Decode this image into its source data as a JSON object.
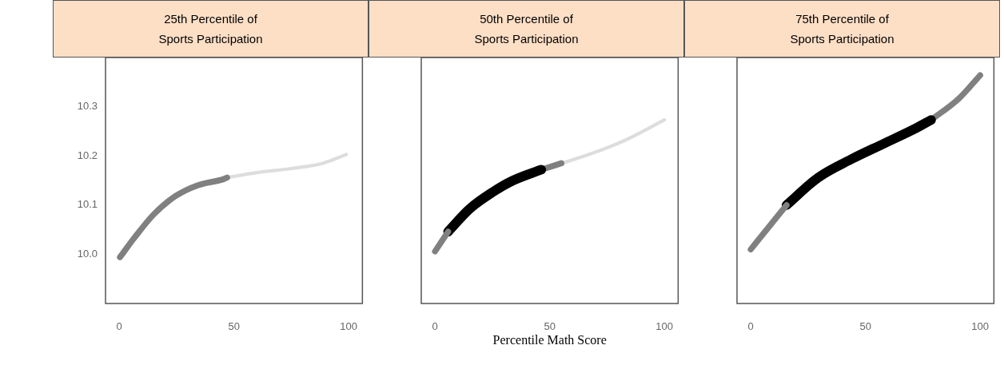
{
  "chart_data": [
    {
      "type": "line",
      "title": "25th Percentile of Sports Participation",
      "xlim": [
        -6,
        106
      ],
      "xticks": [
        0,
        50,
        100
      ],
      "ylim": [
        9.9,
        10.4
      ],
      "yticks": [
        {
          "value": 10,
          "label": "10.0"
        },
        10.1,
        10.2,
        10.3
      ],
      "series": [
        {
          "color": "#808080",
          "x": [
            0.3,
            6.5,
            15,
            24.4,
            34,
            45.6,
            47
          ],
          "values": [
            9.994,
            10.033,
            10.081,
            10.118,
            10.14,
            10.153,
            10.156
          ]
        },
        {
          "color": "#dddddd",
          "x": [
            47,
            60,
            74.5,
            88.7,
            99
          ],
          "values": [
            10.156,
            10.166,
            10.174,
            10.185,
            10.203
          ]
        }
      ]
    },
    {
      "type": "line",
      "title": "50th Percentile of Sports Participation",
      "xlabel": "Percentile Math Score",
      "xlim": [
        -6,
        106
      ],
      "xticks": [
        0,
        50,
        100
      ],
      "ylim": [
        9.9,
        10.4
      ],
      "tick_labels": "x",
      "series": [
        {
          "color": "#808080",
          "x": [
            0,
            5.7
          ],
          "values": [
            10.006,
            10.046
          ]
        },
        {
          "color": "#000000",
          "x": [
            5.7,
            15,
            25,
            34,
            46.3
          ],
          "values": [
            10.046,
            10.092,
            10.126,
            10.15,
            10.172
          ]
        },
        {
          "color": "#808080",
          "x": [
            46.3,
            55.1
          ],
          "values": [
            10.172,
            10.185
          ]
        },
        {
          "color": "#dddddd",
          "x": [
            55.1,
            67.7,
            82,
            100
          ],
          "values": [
            10.185,
            10.204,
            10.23,
            10.273
          ]
        }
      ]
    },
    {
      "type": "line",
      "title": "75th Percentile of Sports Participation",
      "xlim": [
        -6,
        106
      ],
      "xticks": [
        0,
        50,
        100
      ],
      "ylim": [
        9.9,
        10.4
      ],
      "tick_labels": "x",
      "series": [
        {
          "color": "#808080",
          "x": [
            0,
            7.6,
            15.6
          ],
          "values": [
            10.01,
            10.054,
            10.1
          ]
        },
        {
          "color": "#000000",
          "x": [
            15.6,
            29.4,
            43.7,
            58,
            72.3,
            78.6
          ],
          "values": [
            10.1,
            10.156,
            10.193,
            10.225,
            10.257,
            10.273
          ]
        },
        {
          "color": "#808080",
          "x": [
            78.6,
            90.6,
            100
          ],
          "values": [
            10.273,
            10.316,
            10.364
          ]
        }
      ]
    }
  ]
}
